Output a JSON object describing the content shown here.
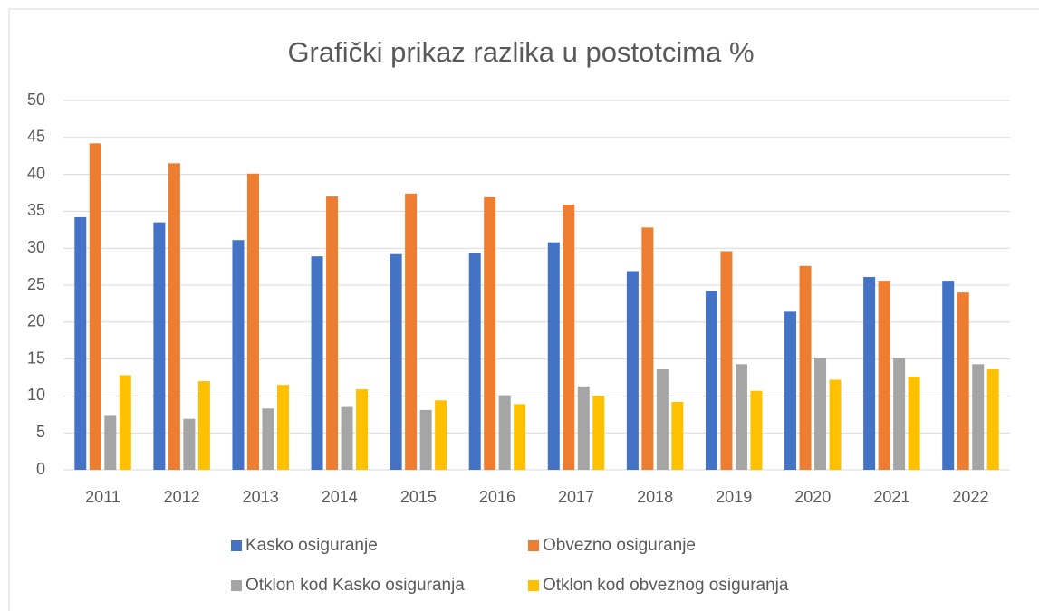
{
  "chart_data": {
    "type": "bar",
    "title": "Grafički prikaz razlika u postotcima %",
    "categories": [
      "2011",
      "2012",
      "2013",
      "2014",
      "2015",
      "2016",
      "2017",
      "2018",
      "2019",
      "2020",
      "2021",
      "2022"
    ],
    "series": [
      {
        "name": "Kasko osiguranje",
        "color": "#4472c4",
        "values": [
          34.2,
          33.5,
          31.1,
          28.9,
          29.2,
          29.3,
          30.8,
          26.9,
          24.2,
          21.4,
          26.1,
          25.6
        ]
      },
      {
        "name": "Obvezno osiguranje",
        "color": "#ed7d31",
        "values": [
          44.2,
          41.5,
          40.1,
          37.0,
          37.4,
          36.9,
          35.9,
          32.8,
          29.6,
          27.6,
          25.6,
          24.0
        ]
      },
      {
        "name": "Otklon kod Kasko osiguranja",
        "color": "#a5a5a5",
        "values": [
          7.3,
          6.9,
          8.3,
          8.5,
          8.1,
          10.1,
          11.3,
          13.6,
          14.3,
          15.2,
          15.1,
          14.3
        ]
      },
      {
        "name": "Otklon kod obveznog osiguranja",
        "color": "#ffc000",
        "values": [
          12.8,
          12.0,
          11.5,
          10.9,
          9.4,
          8.9,
          10.0,
          9.2,
          10.7,
          12.2,
          12.6,
          13.6
        ]
      }
    ],
    "ylim": [
      0,
      50
    ],
    "yticks": [
      0,
      5,
      10,
      15,
      20,
      25,
      30,
      35,
      40,
      45,
      50
    ],
    "grid": true
  }
}
